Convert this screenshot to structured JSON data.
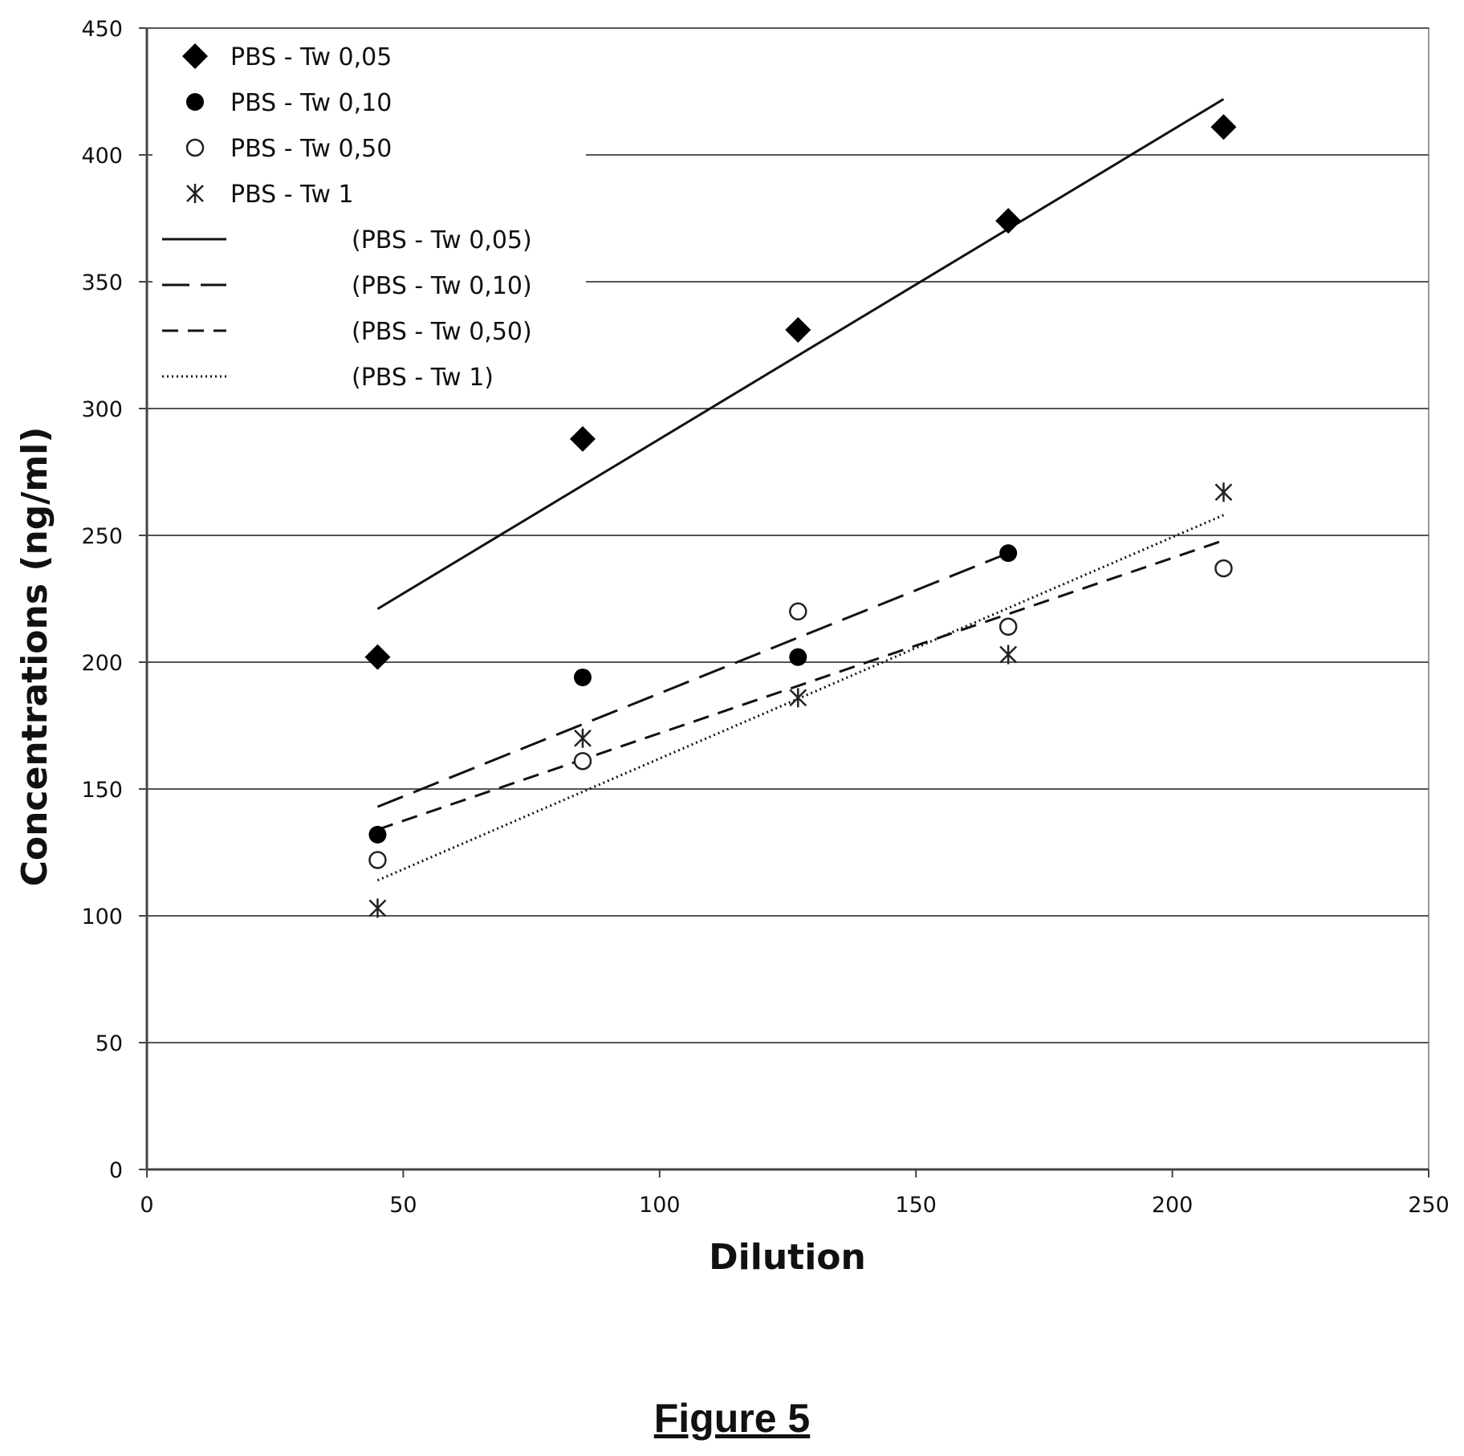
{
  "chart_data": {
    "type": "scatter",
    "xlabel": "Dilution",
    "ylabel": "Concentrations (ng/ml)",
    "xlim": [
      0,
      250
    ],
    "ylim": [
      0,
      450
    ],
    "xticks": [
      "0",
      "50",
      "100",
      "150",
      "200",
      "250"
    ],
    "yticks": [
      "0",
      "50",
      "100",
      "150",
      "200",
      "250",
      "300",
      "350",
      "400",
      "450"
    ],
    "grid": "horizontal",
    "legend_position": "top-left",
    "series": [
      {
        "name": "PBS - Tw 0,05",
        "marker": "diamond",
        "x": [
          45,
          85,
          127,
          168,
          210
        ],
        "y": [
          202,
          288,
          331,
          374,
          411
        ],
        "trend_label": "(PBS - Tw 0,05)",
        "trend_style": "solid",
        "trend_x": [
          45,
          210
        ],
        "trend_y": [
          221,
          422
        ]
      },
      {
        "name": "PBS - Tw 0,10",
        "marker": "filled-circle",
        "x": [
          45,
          85,
          127,
          168
        ],
        "y": [
          132,
          194,
          202,
          243
        ],
        "trend_label": "(PBS - Tw 0,10)",
        "trend_style": "long-dash",
        "trend_x": [
          45,
          168
        ],
        "trend_y": [
          143,
          243
        ]
      },
      {
        "name": "PBS - Tw 0,50",
        "marker": "open-circle",
        "x": [
          45,
          85,
          127,
          168,
          210
        ],
        "y": [
          122,
          161,
          220,
          214,
          237
        ],
        "trend_label": "(PBS - Tw 0,50)",
        "trend_style": "dash",
        "trend_x": [
          45,
          210
        ],
        "trend_y": [
          134,
          248
        ]
      },
      {
        "name": "PBS - Tw 1",
        "marker": "star",
        "x": [
          45,
          85,
          127,
          168,
          210
        ],
        "y": [
          103,
          170,
          186,
          203,
          267
        ],
        "trend_label": "(PBS - Tw 1)",
        "trend_style": "dotted",
        "trend_x": [
          45,
          210
        ],
        "trend_y": [
          114,
          258
        ]
      }
    ]
  },
  "caption": "Figure 5"
}
